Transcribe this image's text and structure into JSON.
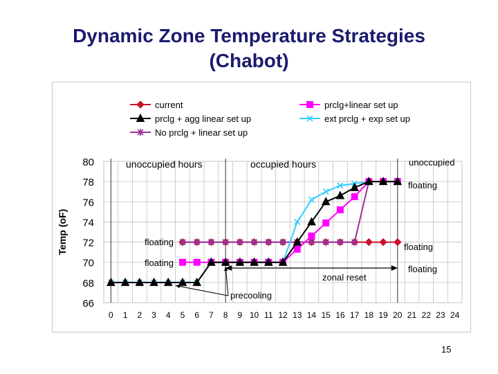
{
  "slide": {
    "title_line1": "Dynamic Zone Temperature Strategies",
    "title_line2": "(Chabot)",
    "page_number": "15"
  },
  "colors": {
    "title": "#1a1a6e",
    "current": "#c8102e",
    "prclg_agg": "#000000",
    "no_prclg": "#993399",
    "prclg_linear": "#ff00ff",
    "ext_prclg_exp": "#33ccff",
    "grid": "#c0c0c0",
    "divider": "#333333"
  },
  "chart_data": {
    "type": "line",
    "title": "",
    "xlabel": "",
    "ylabel": "Temp (oF)",
    "xlim": [
      0,
      24
    ],
    "ylim": [
      66,
      80
    ],
    "x_ticks": [
      "0",
      "1",
      "2",
      "3",
      "4",
      "5",
      "6",
      "7",
      "8",
      "9",
      "10",
      "11",
      "12",
      "13",
      "14",
      "15",
      "16",
      "17",
      "18",
      "19",
      "20",
      "21",
      "22",
      "23",
      "24"
    ],
    "y_ticks": [
      "66",
      "68",
      "70",
      "72",
      "74",
      "76",
      "78",
      "80"
    ],
    "grid": true,
    "legend_position": "top",
    "series": [
      {
        "name": "current",
        "color_key": "current",
        "marker": "diamond",
        "x": [
          5,
          6,
          7,
          8,
          9,
          10,
          11,
          12,
          13,
          14,
          15,
          16,
          17,
          18,
          19,
          20
        ],
        "values": [
          72,
          72,
          72,
          72,
          72,
          72,
          72,
          72,
          72,
          72,
          72,
          72,
          72,
          72,
          72,
          72
        ]
      },
      {
        "name": "prclg + agg linear set up",
        "color_key": "prclg_agg",
        "marker": "triangle",
        "x": [
          0,
          1,
          2,
          3,
          4,
          5,
          6,
          7,
          8,
          9,
          10,
          11,
          12,
          13,
          14,
          15,
          16,
          17,
          18,
          19,
          20
        ],
        "values": [
          68,
          68,
          68,
          68,
          68,
          68,
          68,
          70,
          70,
          70,
          70,
          70,
          70,
          72,
          74,
          76,
          76.6,
          77.4,
          78,
          78,
          78
        ]
      },
      {
        "name": "No prclg + linear set up",
        "color_key": "no_prclg",
        "marker": "star",
        "x": [
          5,
          6,
          7,
          8,
          9,
          10,
          11,
          12,
          13,
          14,
          15,
          16,
          17,
          18,
          19,
          20
        ],
        "values": [
          72,
          72,
          72,
          72,
          72,
          72,
          72,
          72,
          72,
          72,
          72,
          72,
          72,
          78,
          78,
          78
        ]
      },
      {
        "name": "prclg+linear set up",
        "color_key": "prclg_linear",
        "marker": "square",
        "x": [
          5,
          6,
          7,
          8,
          9,
          10,
          11,
          12,
          13,
          14,
          15,
          16,
          17,
          18,
          19,
          20
        ],
        "values": [
          70,
          70,
          70,
          70,
          70,
          70,
          70,
          70,
          71.3,
          72.6,
          73.9,
          75.2,
          76.5,
          78,
          78,
          78
        ]
      },
      {
        "name": "ext prclg + exp set up",
        "color_key": "ext_prclg_exp",
        "marker": "x",
        "x": [
          0,
          1,
          2,
          3,
          4,
          5,
          6,
          7,
          8,
          9,
          10,
          11,
          12,
          13,
          14,
          15,
          16,
          17,
          18,
          19,
          20
        ],
        "values": [
          68,
          68,
          68,
          68,
          68,
          68,
          68,
          70,
          70,
          70,
          70,
          70,
          70,
          74,
          76.2,
          77,
          77.6,
          77.8,
          78,
          78,
          78
        ]
      }
    ],
    "annotations": {
      "unoccupied_left": "unoccupied hours",
      "occupied": "occupied hours",
      "unoccupied_right": "unoccupied",
      "floating_top_right": "floating",
      "floating_72_left": "floating",
      "floating_72_right": "floating",
      "floating_70_left": "floating",
      "floating_70_right": "floating",
      "zonal_reset": "zonal reset",
      "precooling": "precooling"
    }
  }
}
